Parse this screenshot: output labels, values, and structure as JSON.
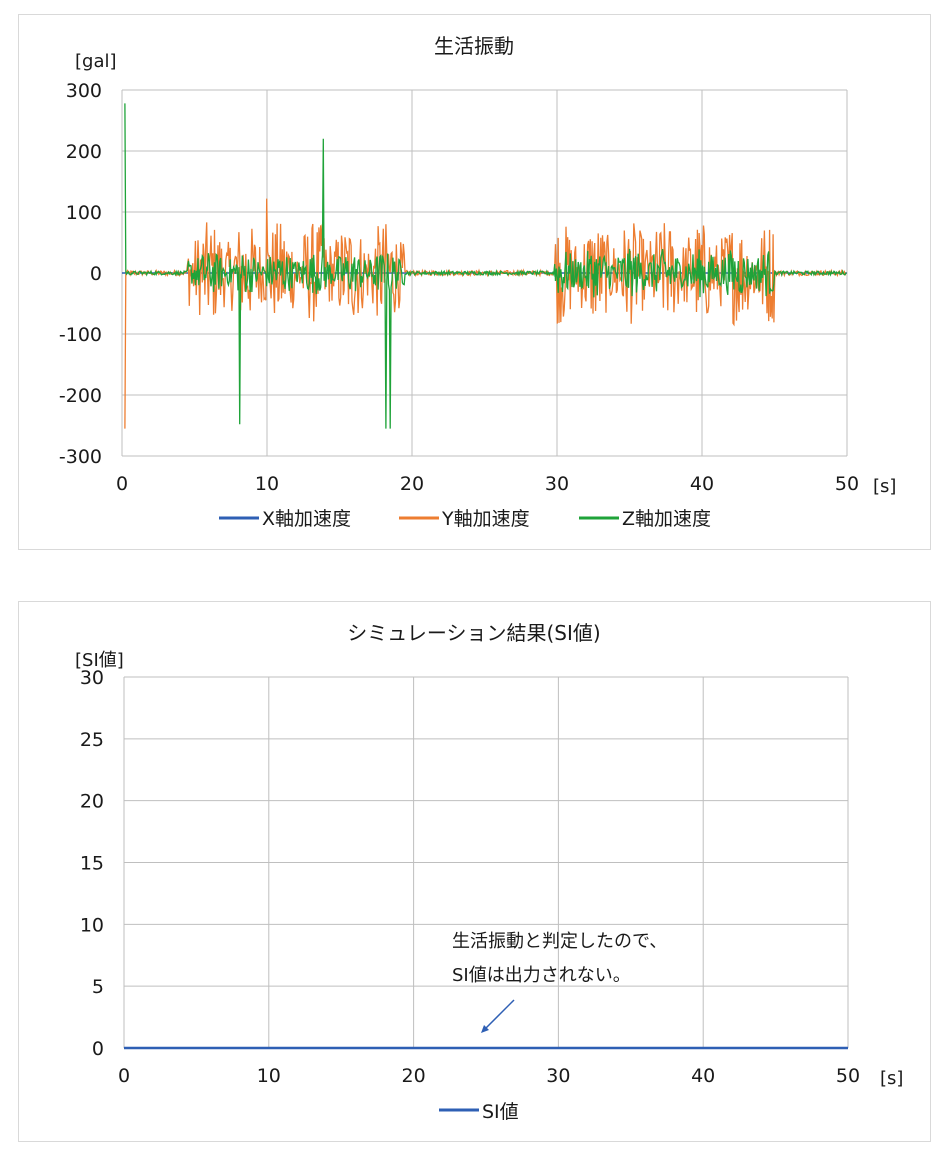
{
  "charts": [
    {
      "title": "生活振動",
      "ylabel": "[gal]",
      "xlabel": "[s]",
      "legend": [
        {
          "label": "X軸加速度",
          "color": "#2e5fb4"
        },
        {
          "label": "Y軸加速度",
          "color": "#ed7d31"
        },
        {
          "label": "Z軸加速度",
          "color": "#1fa339"
        }
      ]
    },
    {
      "title": "シミュレーション結果(SI値)",
      "ylabel": "[SI値]",
      "xlabel": "[s]",
      "legend": [
        {
          "label": "SI値",
          "color": "#2e5fb4"
        }
      ],
      "annotation": [
        "生活振動と判定したので、",
        "SI値は出力されない。"
      ]
    }
  ],
  "chart_data": [
    {
      "type": "line",
      "title": "生活振動",
      "ylabel": "[gal]",
      "xlabel": "[s]",
      "xlim": [
        0,
        50
      ],
      "ylim": [
        -300,
        300
      ],
      "xticks": [
        0,
        10,
        20,
        30,
        40,
        50
      ],
      "yticks": [
        300,
        200,
        100,
        0,
        -100,
        -200,
        -300
      ],
      "grid": true,
      "legend_position": "bottom",
      "series": [
        {
          "name": "X軸加速度",
          "color": "#2e5fb4",
          "note_envelope": "near zero throughout",
          "x": [
            0,
            50
          ],
          "y": [
            0,
            0
          ]
        },
        {
          "name": "Y軸加速度",
          "color": "#ed7d31",
          "spikes": [
            {
              "x": 0.2,
              "y": -255
            },
            {
              "x": 10.0,
              "y": 122
            },
            {
              "x": 13.8,
              "y": 80
            }
          ],
          "bursts": [
            {
              "start": 4.5,
              "end": 19.5,
              "amplitude": 85
            },
            {
              "start": 29.8,
              "end": 45.0,
              "amplitude": 85
            }
          ]
        },
        {
          "name": "Z軸加速度",
          "color": "#1fa339",
          "spikes": [
            {
              "x": 0.2,
              "y": 278
            },
            {
              "x": 8.1,
              "y": -248
            },
            {
              "x": 13.9,
              "y": 220
            },
            {
              "x": 18.2,
              "y": -255
            },
            {
              "x": 18.5,
              "y": -255
            }
          ],
          "bursts": [
            {
              "start": 4.5,
              "end": 19.5,
              "amplitude": 35
            },
            {
              "start": 29.8,
              "end": 45.0,
              "amplitude": 40
            }
          ]
        }
      ]
    },
    {
      "type": "line",
      "title": "シミュレーション結果(SI値)",
      "ylabel": "[SI値]",
      "xlabel": "[s]",
      "xlim": [
        0,
        50
      ],
      "ylim": [
        0,
        30
      ],
      "xticks": [
        0,
        10,
        20,
        30,
        40,
        50
      ],
      "yticks": [
        30,
        25,
        20,
        15,
        10,
        5,
        0
      ],
      "grid": true,
      "legend_position": "bottom",
      "series": [
        {
          "name": "SI値",
          "color": "#2e5fb4",
          "x": [
            0,
            50
          ],
          "y": [
            0,
            0
          ]
        }
      ]
    }
  ]
}
